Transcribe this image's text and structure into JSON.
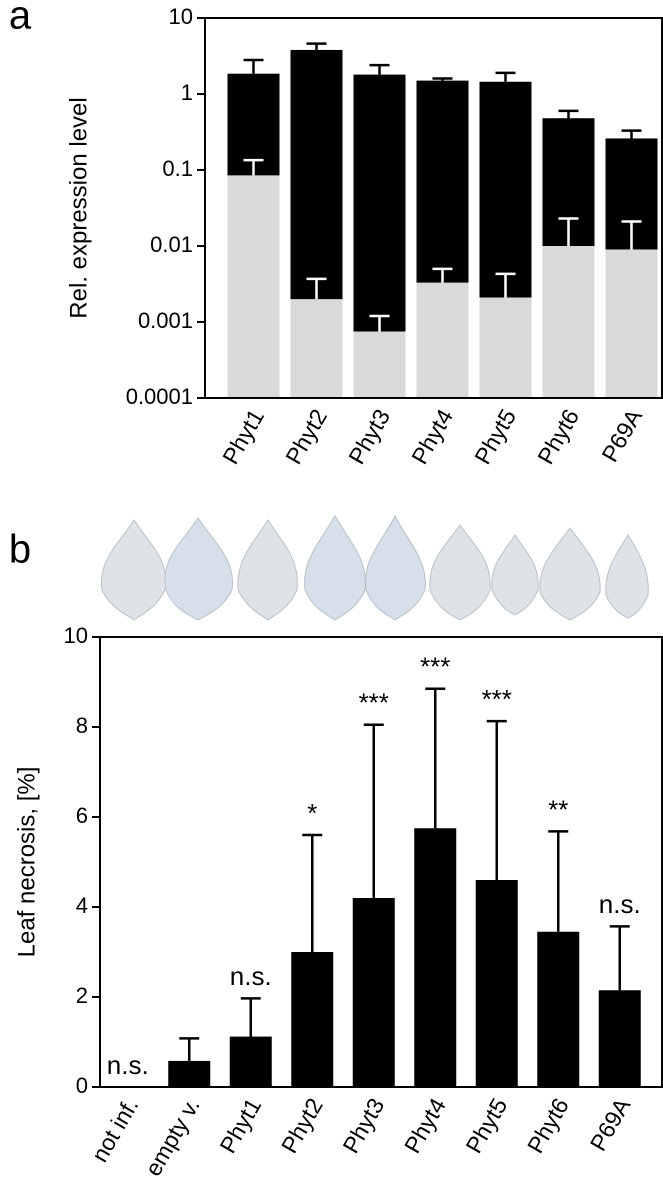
{
  "chart_data": [
    {
      "type": "bar",
      "panel_label": "a",
      "y_label": "Rel. expression level",
      "categories": [
        "Phyt1",
        "Phyt2",
        "Phyt3",
        "Phyt4",
        "Phyt5",
        "Phyt6",
        "P69A"
      ],
      "log_scale": true,
      "barmode": "overlay",
      "ylim": [
        0.0001,
        10
      ],
      "yticks": [
        0.0001,
        0.001,
        0.01,
        0.1,
        1,
        10
      ],
      "series": [
        {
          "color": "#000000",
          "values": [
            1.85,
            3.8,
            1.8,
            1.5,
            1.45,
            0.48,
            0.26
          ],
          "errors": [
            0.95,
            0.8,
            0.6,
            0.1,
            0.45,
            0.12,
            0.07
          ]
        },
        {
          "color": "#d9d9d9",
          "values": [
            0.085,
            0.002,
            0.00075,
            0.0033,
            0.0021,
            0.01,
            0.009
          ],
          "errors": [
            0.05,
            0.0017,
            0.00045,
            0.0017,
            0.0022,
            0.013,
            0.012
          ]
        }
      ]
    },
    {
      "type": "bar",
      "panel_label": "b",
      "y_label": "Leaf necrosis, [%]",
      "categories": [
        "not inf.",
        "empty v.",
        "Phyt1",
        "Phyt2",
        "Phyt3",
        "Phyt4",
        "Phyt5",
        "Phyt6",
        "P69A"
      ],
      "values": [
        0,
        0.58,
        1.12,
        3.0,
        4.2,
        5.75,
        4.6,
        3.45,
        2.15
      ],
      "errors": [
        null,
        0.5,
        0.85,
        2.6,
        3.85,
        3.1,
        3.53,
        2.23,
        1.42
      ],
      "significance": [
        "n.s.",
        null,
        "n.s.",
        "*",
        "***",
        "***",
        "***",
        "**",
        "n.s."
      ],
      "color": "#000000",
      "ylim": [
        0,
        10
      ],
      "yticks": [
        0,
        2,
        4,
        6,
        8,
        10
      ]
    }
  ]
}
